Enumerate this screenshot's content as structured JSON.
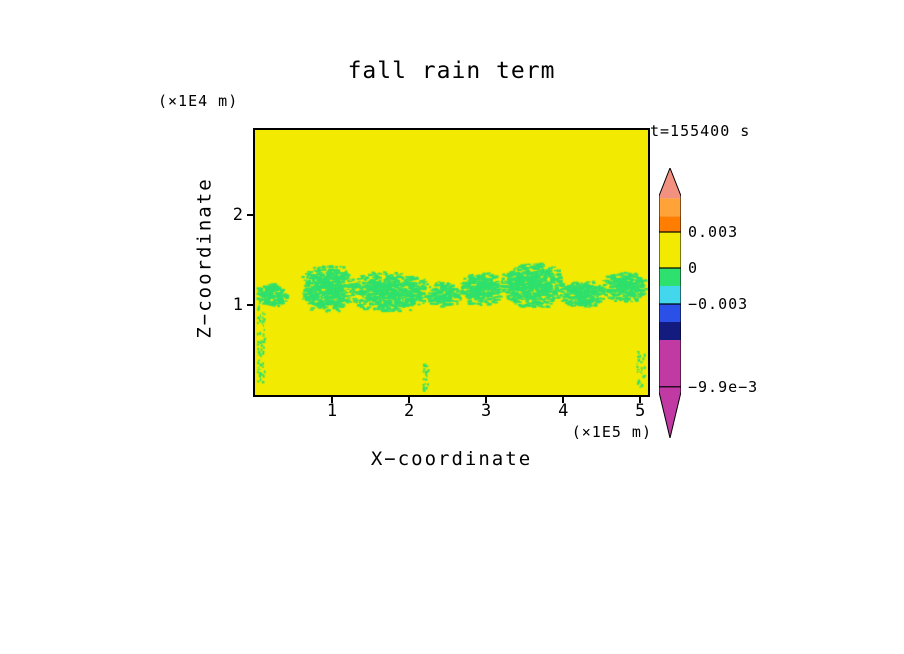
{
  "title": "fall rain term",
  "time_label": "t=155400 s",
  "axes": {
    "x_label": "X−coordinate",
    "x_units": "(×1E5 m)",
    "z_label": "Z−coordinate",
    "z_units": "(×1E4 m)"
  },
  "colorbar": {
    "labels": [
      {
        "value": 0.003,
        "text": "0.003"
      },
      {
        "value": 0,
        "text": "0"
      },
      {
        "value": -0.003,
        "text": "−0.003"
      },
      {
        "value": -0.0099,
        "text": "−9.9e−3"
      }
    ],
    "segments": [
      {
        "color": "#f2917f",
        "hi": null,
        "lo": 0.0058
      },
      {
        "color": "#ffa238",
        "hi": 0.0058,
        "lo": 0.0043
      },
      {
        "color": "#ff7d00",
        "hi": 0.0043,
        "lo": 0.003
      },
      {
        "color": "#f2ea00",
        "hi": 0.003,
        "lo": 0
      },
      {
        "color": "#2ee06d",
        "hi": 0,
        "lo": -0.0015
      },
      {
        "color": "#43d7ee",
        "hi": -0.0015,
        "lo": -0.003
      },
      {
        "color": "#2b50e8",
        "hi": -0.003,
        "lo": -0.0045
      },
      {
        "color": "#141b7e",
        "hi": -0.0045,
        "lo": -0.006
      },
      {
        "color": "#c13aa4",
        "hi": -0.006,
        "lo": null
      }
    ]
  },
  "chart_data": {
    "type": "heatmap",
    "title": "fall rain term",
    "xlabel": "X-coordinate",
    "ylabel": "Z-coordinate",
    "x_units_scale": "×1E5 m",
    "z_units_scale": "×1E4 m",
    "time": "t=155400 s",
    "x_range": [
      0,
      5.1
    ],
    "z_range": [
      0,
      2.95
    ],
    "x_ticks": [
      1,
      2,
      3,
      4,
      5
    ],
    "z_ticks": [
      1,
      2
    ],
    "colorbar_label_values": [
      0.003,
      0,
      -0.003,
      -0.0099
    ],
    "background_color": "#f2ea00",
    "background_value_range": [
      0,
      0.003
    ],
    "patch_color": "#2ee06d",
    "patch_value_range": [
      -0.0015,
      0
    ],
    "seed": 7,
    "green_patches": [
      {
        "x": 0.22,
        "z": 1.12,
        "rx": 0.2,
        "rz": 0.13
      },
      {
        "x": 0.95,
        "z": 1.18,
        "rx": 0.33,
        "rz": 0.26
      },
      {
        "x": 1.75,
        "z": 1.15,
        "rx": 0.5,
        "rz": 0.22
      },
      {
        "x": 2.45,
        "z": 1.12,
        "rx": 0.22,
        "rz": 0.14
      },
      {
        "x": 2.95,
        "z": 1.18,
        "rx": 0.28,
        "rz": 0.18
      },
      {
        "x": 3.6,
        "z": 1.22,
        "rx": 0.4,
        "rz": 0.24
      },
      {
        "x": 4.25,
        "z": 1.12,
        "rx": 0.28,
        "rz": 0.15
      },
      {
        "x": 4.8,
        "z": 1.2,
        "rx": 0.3,
        "rz": 0.16
      }
    ],
    "green_streaks": [
      {
        "x": 0.07,
        "z1": 0.15,
        "z2": 1.0,
        "w": 0.05
      },
      {
        "x": 2.2,
        "z1": 0.05,
        "z2": 0.35,
        "w": 0.04
      },
      {
        "x": 5.0,
        "z1": 0.1,
        "z2": 0.6,
        "w": 0.05
      }
    ]
  }
}
